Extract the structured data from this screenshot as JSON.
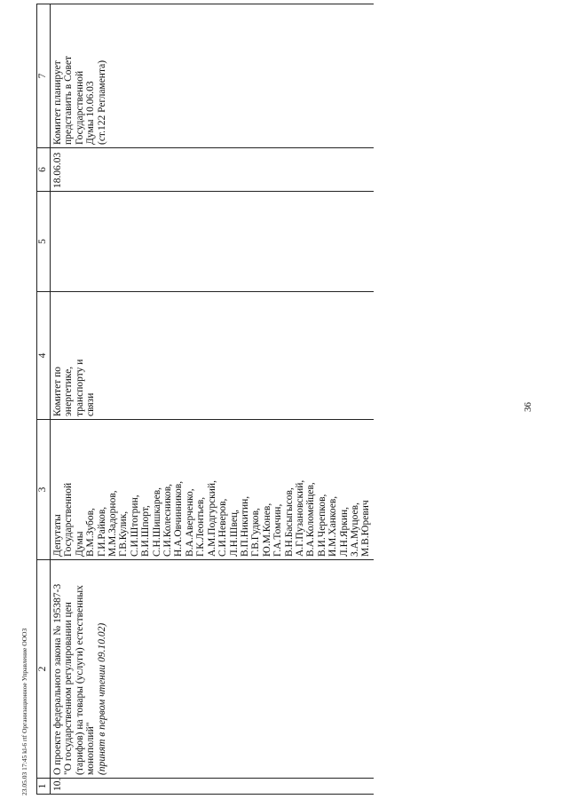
{
  "page": {
    "number": "36"
  },
  "footer": {
    "text": "23.05.03 17:45  kl-6 rtf   Организационное Управление ООО3"
  },
  "table": {
    "column_headers": [
      "1",
      "2",
      "3",
      "4",
      "5",
      "6",
      "7"
    ],
    "rows": [
      {
        "num": "10.",
        "title_lines": [
          "О проекте федерального закона № 195387-3",
          "\"О государственном регулировании цен",
          "(тарифов) на товары (услуги) естественных",
          "монополий\""
        ],
        "note": "(принят в первом чтении 09.10.02)",
        "authors_intro": [
          "Депутаты",
          "Государственной",
          "Думы"
        ],
        "authors": [
          "В.М.Зубов,",
          "Г.И.Райков,",
          "М.М.Задорнов,",
          "Г.В.Кулик,",
          "С.И.Штогрин,",
          "В.И.Шпорт,",
          "С.Н.Шишкарев,",
          "С.И.Колесников,",
          "Н.А.Овчинников,",
          "В.А.Аверченко,",
          "Г.К.Леонтьев,",
          "А.М.Подгурский,",
          "С.И.Неверов,",
          "Л.Н.Швец,",
          "В.П.Никитин,",
          "Г.В.Гудков,",
          "Ю.М.Конев,",
          "Г.А.Томчин,",
          "В.Н.Басыгысов,",
          "А.Г.Пузановский,",
          "В.А.Коломейцев,",
          "В.И.Черепков,",
          "И.М.Ханкоев,",
          "Л.Н.Яркин,",
          "З.А.Муцоев,",
          "М.В.Юревич"
        ],
        "committee": [
          "Комитет по",
          "энергетике,",
          "транспорту и",
          "связи"
        ],
        "col5": "",
        "date": "18.06.03",
        "plan": [
          "Комитет планирует",
          "представить в Совет",
          "Государственной",
          "Думы 10.06.03",
          "(ст.122 Регламента)"
        ]
      }
    ]
  }
}
